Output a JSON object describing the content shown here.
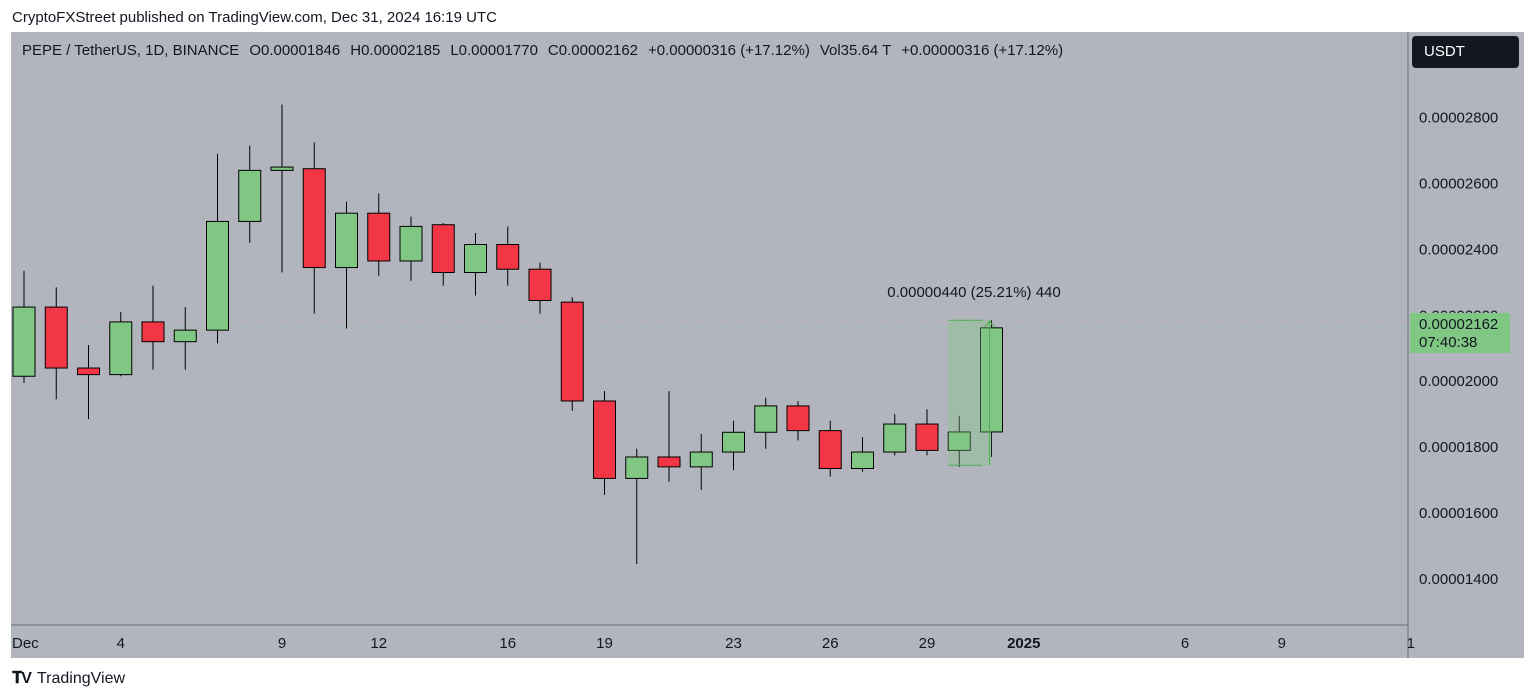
{
  "header": {
    "published": "CryptoFXStreet published on TradingView.com, Dec 31, 2024 16:19 UTC"
  },
  "legend": {
    "symbol": "PEPE / TetherUS, 1D, BINANCE",
    "open": "O0.00001846",
    "high": "H0.00002185",
    "low": "L0.00001770",
    "close": "C0.00002162",
    "change": "+0.00000316 (+17.12%)",
    "volume": "Vol35.64 T",
    "volume_change": "+0.00000316 (+17.12%)"
  },
  "currency_button": "USDT",
  "price_tag": {
    "price": "0.00002162",
    "countdown": "07:40:38"
  },
  "measure": {
    "label": "0.00000440 (25.21%) 440"
  },
  "brand": {
    "name": "TradingView",
    "logo": "tradingview-logo"
  },
  "colors": {
    "up": "#81c784",
    "down": "#f23645",
    "background": "#b2b5be",
    "text": "#131722"
  },
  "chart_data": {
    "type": "candlestick",
    "ylim": [
      1.26e-05,
      3.06e-05
    ],
    "yticks": [
      "0.00001400",
      "0.00001600",
      "0.00001800",
      "0.00002000",
      "0.00002200",
      "0.00002400",
      "0.00002600",
      "0.00002800"
    ],
    "xticks": [
      {
        "label": "Dec",
        "index": 0
      },
      {
        "label": "4",
        "index": 3
      },
      {
        "label": "9",
        "index": 8
      },
      {
        "label": "12",
        "index": 11
      },
      {
        "label": "16",
        "index": 15
      },
      {
        "label": "19",
        "index": 18
      },
      {
        "label": "23",
        "index": 22
      },
      {
        "label": "26",
        "index": 25
      },
      {
        "label": "29",
        "index": 28
      },
      {
        "label": "2025",
        "index": 31,
        "bold": true
      },
      {
        "label": "6",
        "index": 36
      },
      {
        "label": "9",
        "index": 39
      },
      {
        "label": "1",
        "index": 43
      }
    ],
    "candles": [
      {
        "o": 2.015e-05,
        "h": 2.335e-05,
        "l": 1.995e-05,
        "c": 2.225e-05
      },
      {
        "o": 2.225e-05,
        "h": 2.285e-05,
        "l": 1.945e-05,
        "c": 2.04e-05
      },
      {
        "o": 2.04e-05,
        "h": 2.11e-05,
        "l": 1.885e-05,
        "c": 2.02e-05
      },
      {
        "o": 2.02e-05,
        "h": 2.21e-05,
        "l": 2.015e-05,
        "c": 2.18e-05
      },
      {
        "o": 2.18e-05,
        "h": 2.29e-05,
        "l": 2.035e-05,
        "c": 2.12e-05
      },
      {
        "o": 2.12e-05,
        "h": 2.225e-05,
        "l": 2.035e-05,
        "c": 2.155e-05
      },
      {
        "o": 2.155e-05,
        "h": 2.69e-05,
        "l": 2.115e-05,
        "c": 2.485e-05
      },
      {
        "o": 2.485e-05,
        "h": 2.715e-05,
        "l": 2.42e-05,
        "c": 2.64e-05
      },
      {
        "o": 2.64e-05,
        "h": 2.84e-05,
        "l": 2.33e-05,
        "c": 2.65e-05
      },
      {
        "o": 2.645e-05,
        "h": 2.725e-05,
        "l": 2.205e-05,
        "c": 2.345e-05
      },
      {
        "o": 2.345e-05,
        "h": 2.545e-05,
        "l": 2.16e-05,
        "c": 2.51e-05
      },
      {
        "o": 2.51e-05,
        "h": 2.57e-05,
        "l": 2.32e-05,
        "c": 2.365e-05
      },
      {
        "o": 2.365e-05,
        "h": 2.5e-05,
        "l": 2.305e-05,
        "c": 2.47e-05
      },
      {
        "o": 2.475e-05,
        "h": 2.48e-05,
        "l": 2.29e-05,
        "c": 2.33e-05
      },
      {
        "o": 2.33e-05,
        "h": 2.45e-05,
        "l": 2.26e-05,
        "c": 2.415e-05
      },
      {
        "o": 2.415e-05,
        "h": 2.47e-05,
        "l": 2.29e-05,
        "c": 2.34e-05
      },
      {
        "o": 2.34e-05,
        "h": 2.36e-05,
        "l": 2.205e-05,
        "c": 2.245e-05
      },
      {
        "o": 2.24e-05,
        "h": 2.255e-05,
        "l": 1.91e-05,
        "c": 1.94e-05
      },
      {
        "o": 1.94e-05,
        "h": 1.97e-05,
        "l": 1.655e-05,
        "c": 1.705e-05
      },
      {
        "o": 1.705e-05,
        "h": 1.795e-05,
        "l": 1.445e-05,
        "c": 1.77e-05
      },
      {
        "o": 1.77e-05,
        "h": 1.97e-05,
        "l": 1.695e-05,
        "c": 1.74e-05
      },
      {
        "o": 1.74e-05,
        "h": 1.84e-05,
        "l": 1.67e-05,
        "c": 1.785e-05
      },
      {
        "o": 1.785e-05,
        "h": 1.88e-05,
        "l": 1.73e-05,
        "c": 1.845e-05
      },
      {
        "o": 1.845e-05,
        "h": 1.95e-05,
        "l": 1.795e-05,
        "c": 1.925e-05
      },
      {
        "o": 1.925e-05,
        "h": 1.94e-05,
        "l": 1.82e-05,
        "c": 1.85e-05
      },
      {
        "o": 1.85e-05,
        "h": 1.88e-05,
        "l": 1.71e-05,
        "c": 1.735e-05
      },
      {
        "o": 1.735e-05,
        "h": 1.83e-05,
        "l": 1.725e-05,
        "c": 1.785e-05
      },
      {
        "o": 1.785e-05,
        "h": 1.9e-05,
        "l": 1.775e-05,
        "c": 1.87e-05
      },
      {
        "o": 1.87e-05,
        "h": 1.915e-05,
        "l": 1.775e-05,
        "c": 1.79e-05
      },
      {
        "o": 1.79e-05,
        "h": 1.895e-05,
        "l": 1.74e-05,
        "c": 1.846e-05
      },
      {
        "o": 1.846e-05,
        "h": 2.185e-05,
        "l": 1.77e-05,
        "c": 2.162e-05
      }
    ],
    "measure": {
      "from_index": 29,
      "to_index": 30,
      "low": 1.745e-05,
      "high": 2.185e-05
    },
    "current_price": 2.162e-05
  }
}
